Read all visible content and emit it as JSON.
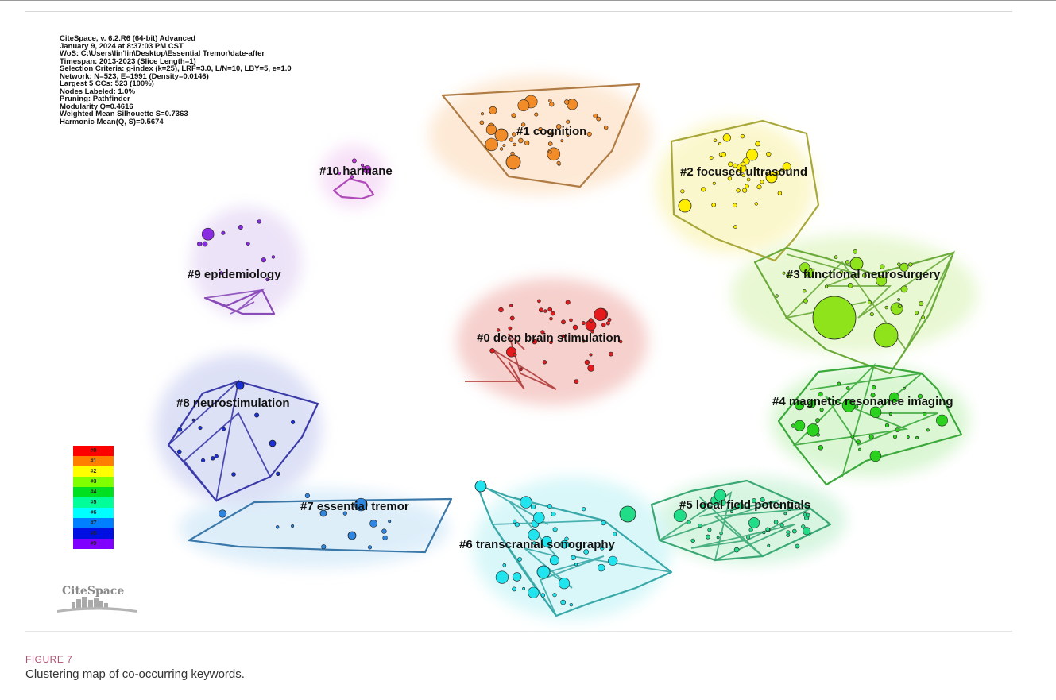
{
  "info_lines": [
    "CiteSpace, v. 6.2.R6 (64-bit) Advanced",
    "January 9, 2024 at 8:37:03 PM CST",
    "WoS: C:\\Users\\lin'lin\\Desktop\\Essential Tremor\\date-after",
    "Timespan: 2013-2023 (Slice Length=1)",
    "Selection Criteria: g-index (k=25), LRF=3.0, L/N=10, LBY=5, e=1.0",
    "Network: N=523, E=1991 (Density=0.0146)",
    "Largest 5 CCs: 523 (100%)",
    "Nodes Labeled: 1.0%",
    "Pruning: Pathfinder",
    "Modularity Q=0.4616",
    "Weighted Mean Silhouette S=0.7363",
    "Harmonic Mean(Q, S)=0.5674"
  ],
  "clusters": [
    {
      "id": "0",
      "label": "#0 deep brain stimulation",
      "color": "#e41a1c",
      "hull": "#f4c8c4"
    },
    {
      "id": "1",
      "label": "#1 cognition",
      "color": "#f28c28",
      "hull": "#fde6cf"
    },
    {
      "id": "2",
      "label": "#2 focused ultrasound",
      "color": "#ffee00",
      "hull": "#fbf6c4"
    },
    {
      "id": "3",
      "label": "#3 functional neurosurgery",
      "color": "#8fe31a",
      "hull": "#e5f7cc"
    },
    {
      "id": "4",
      "label": "#4 magnetic resonance imaging",
      "color": "#2ad11d",
      "hull": "#d4f5cc"
    },
    {
      "id": "5",
      "label": "#5 local field potentials",
      "color": "#22dd88",
      "hull": "#d2f4dd"
    },
    {
      "id": "6",
      "label": "#6 transcranial sonography",
      "color": "#22e4ee",
      "hull": "#d3f6f8"
    },
    {
      "id": "7",
      "label": "#7 essential tremor",
      "color": "#2f86e0",
      "hull": "#d9ecf9"
    },
    {
      "id": "8",
      "label": "#8 neurostimulation",
      "color": "#1b2fd6",
      "hull": "#d8dcf5"
    },
    {
      "id": "9",
      "label": "#9 epidemiology",
      "color": "#8a2be2",
      "hull": "#eadff7"
    },
    {
      "id": "10",
      "label": "#10 harmane",
      "color": "#c03ad8",
      "hull": "#f6ddf7"
    }
  ],
  "legend": [
    {
      "label": "#0",
      "color": "#ff0000"
    },
    {
      "label": "#1",
      "color": "#ff8000"
    },
    {
      "label": "#2",
      "color": "#ffff00"
    },
    {
      "label": "#3",
      "color": "#80ff00"
    },
    {
      "label": "#4",
      "color": "#00e020"
    },
    {
      "label": "#5",
      "color": "#00ff99"
    },
    {
      "label": "#6",
      "color": "#00ffff"
    },
    {
      "label": "#7",
      "color": "#0080ff"
    },
    {
      "label": "#8",
      "color": "#0010e0"
    },
    {
      "label": "#9",
      "color": "#8000ff"
    }
  ],
  "logo_text": "CiteSpace",
  "figure_label": "FIGURE 7",
  "figure_caption": "Clustering map of co-occurring keywords."
}
